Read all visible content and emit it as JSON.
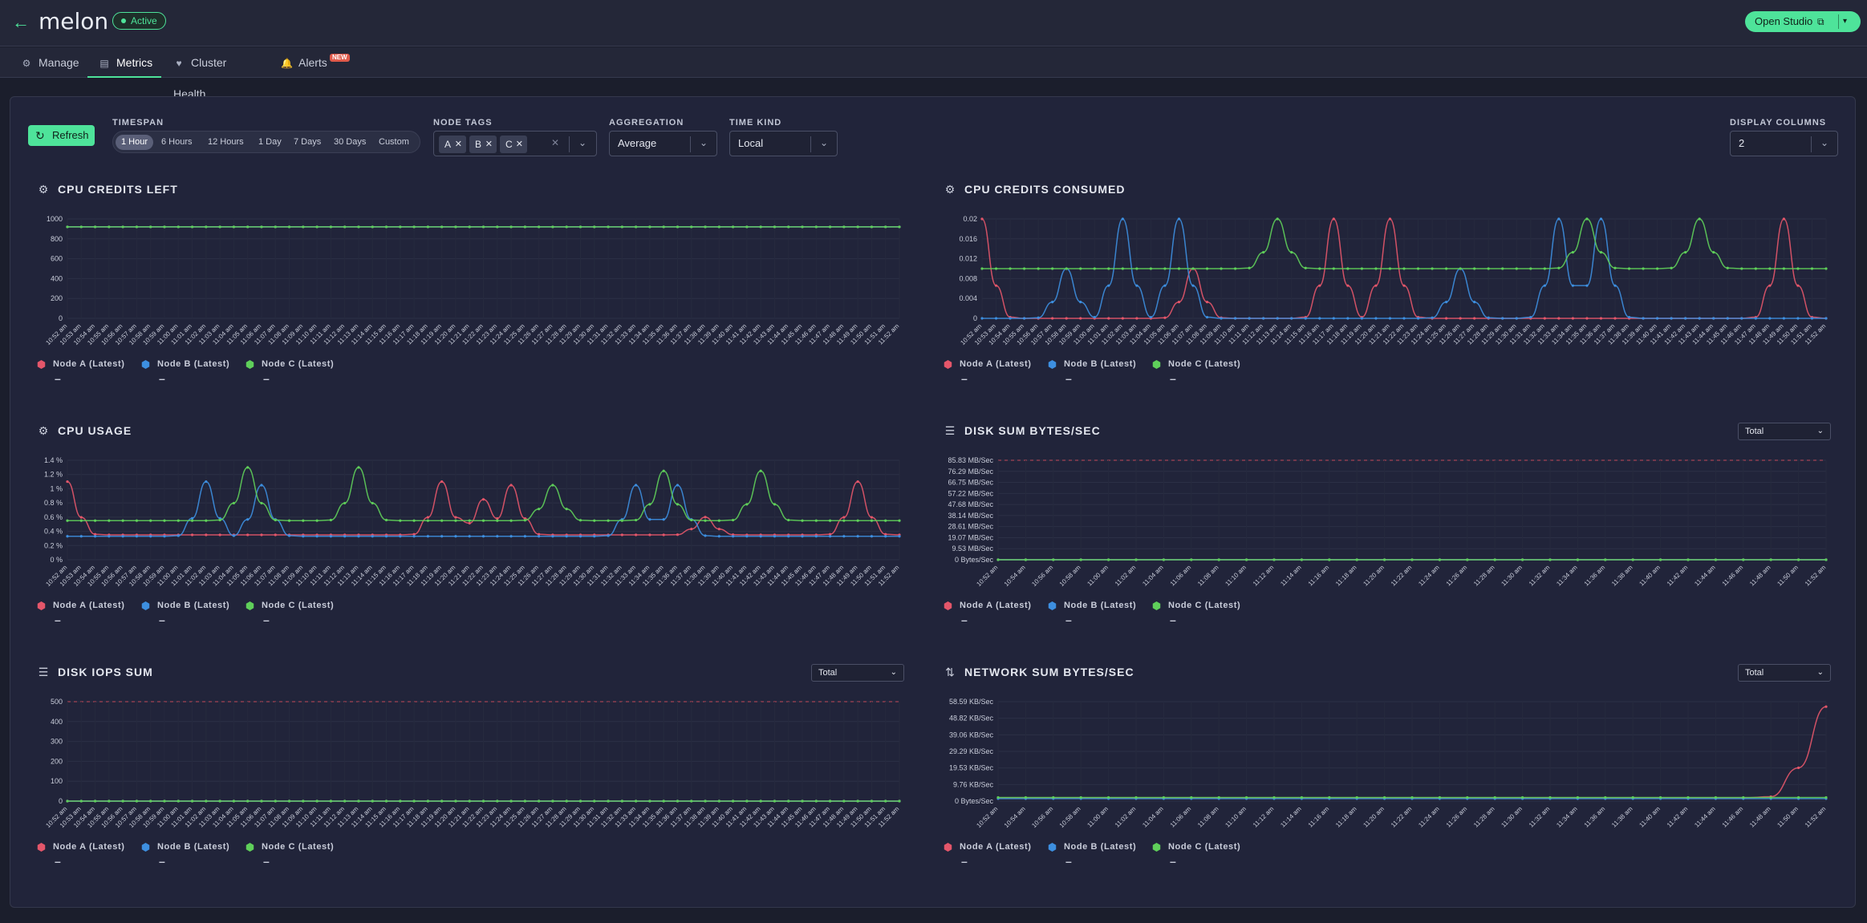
{
  "header": {
    "app_name": "melon",
    "status": "Active",
    "open_studio": "Open Studio"
  },
  "tabs": [
    {
      "label": "Manage",
      "icon": "gear-icon"
    },
    {
      "label": "Metrics",
      "icon": "dashboard-icon",
      "active": true
    },
    {
      "label": "Cluster Health",
      "icon": "heart-icon"
    },
    {
      "label": "Alerts",
      "icon": "bell-icon",
      "badge": "NEW"
    }
  ],
  "filters": {
    "refresh": "Refresh",
    "timespan_label": "TIMESPAN",
    "timespans": [
      "1 Hour",
      "6 Hours",
      "12 Hours",
      "1 Day",
      "7 Days",
      "30 Days",
      "Custom"
    ],
    "timespan_selected": "1 Hour",
    "node_tags_label": "NODE TAGS",
    "node_tags": [
      "A",
      "B",
      "C"
    ],
    "aggregation_label": "AGGREGATION",
    "aggregation": "Average",
    "time_kind_label": "TIME KIND",
    "time_kind": "Local",
    "display_columns_label": "DISPLAY COLUMNS",
    "display_columns": "2"
  },
  "colors": {
    "node_a": "#e4566a",
    "node_b": "#3d8fe0",
    "node_c": "#5fcf5a",
    "accent": "#4ee39a"
  },
  "legend": {
    "a": "Node A (Latest)",
    "b": "Node B (Latest)",
    "c": "Node C (Latest)",
    "value": "–"
  },
  "selector_total": "Total",
  "chart_data": [
    {
      "title": "CPU CREDITS LEFT",
      "type": "line",
      "icon": "gear-icon",
      "yticks": [
        "1000",
        "800",
        "600",
        "400",
        "200",
        "0"
      ],
      "ylim": [
        0,
        1000
      ],
      "x": [
        "10:52 am",
        "10:53 am",
        "10:54 am",
        "10:55 am",
        "10:56 am",
        "10:57 am",
        "10:58 am",
        "10:59 am",
        "11:00 am",
        "11:01 am",
        "11:02 am",
        "11:03 am",
        "11:04 am",
        "11:05 am",
        "11:06 am",
        "11:07 am",
        "11:08 am",
        "11:09 am",
        "11:10 am",
        "11:11 am",
        "11:12 am",
        "11:13 am",
        "11:14 am",
        "11:15 am",
        "11:16 am",
        "11:17 am",
        "11:18 am",
        "11:19 am",
        "11:20 am",
        "11:21 am",
        "11:22 am",
        "11:23 am",
        "11:24 am",
        "11:25 am",
        "11:26 am",
        "11:27 am",
        "11:28 am",
        "11:29 am",
        "11:30 am",
        "11:31 am",
        "11:32 am",
        "11:33 am",
        "11:34 am",
        "11:35 am",
        "11:36 am",
        "11:37 am",
        "11:38 am",
        "11:39 am",
        "11:40 am",
        "11:41 am",
        "11:42 am",
        "11:43 am",
        "11:44 am",
        "11:45 am",
        "11:46 am",
        "11:47 am",
        "11:48 am",
        "11:49 am",
        "11:50 am",
        "11:51 am",
        "11:52 am"
      ],
      "series": [
        {
          "name": "Node A (Latest)",
          "values": "flat:920"
        },
        {
          "name": "Node B (Latest)",
          "values": "flat:920"
        },
        {
          "name": "Node C (Latest)",
          "values": "flat:920"
        }
      ]
    },
    {
      "title": "CPU CREDITS CONSUMED",
      "type": "line",
      "icon": "gear-icon",
      "yticks": [
        "0.02",
        "0.016",
        "0.012",
        "0.008",
        "0.004",
        "0"
      ],
      "ylim": [
        0,
        0.02
      ],
      "x": "same-minutes",
      "series": [
        {
          "name": "Node A (Latest)",
          "peaks": [
            [
              0,
              0.02
            ],
            [
              15,
              0.01
            ],
            [
              25,
              0.02
            ],
            [
              29,
              0.02
            ],
            [
              57,
              0.02
            ]
          ],
          "base": 0
        },
        {
          "name": "Node B (Latest)",
          "peaks": [
            [
              6,
              0.01
            ],
            [
              10,
              0.02
            ],
            [
              14,
              0.02
            ],
            [
              34,
              0.01
            ],
            [
              41,
              0.02
            ],
            [
              44,
              0.02
            ]
          ],
          "base": 0
        },
        {
          "name": "Node C (Latest)",
          "peaks": [
            [
              21,
              0.02
            ],
            [
              43,
              0.02
            ],
            [
              51,
              0.02
            ]
          ],
          "base": 0.01
        }
      ]
    },
    {
      "title": "CPU USAGE",
      "type": "line",
      "icon": "gear-icon",
      "yticks": [
        "1.4 %",
        "1.2 %",
        "1 %",
        "0.8 %",
        "0.6 %",
        "0.4 %",
        "0.2 %",
        "0 %"
      ],
      "ylim": [
        0,
        1.4
      ],
      "x": "same-minutes",
      "series": [
        {
          "name": "Node A (Latest)",
          "peaks": [
            [
              0,
              1.1
            ],
            [
              27,
              1.1
            ],
            [
              30,
              0.85
            ],
            [
              32,
              1.05
            ],
            [
              46,
              0.6
            ],
            [
              57,
              1.1
            ]
          ],
          "base": 0.35
        },
        {
          "name": "Node B (Latest)",
          "peaks": [
            [
              10,
              1.1
            ],
            [
              14,
              1.05
            ],
            [
              41,
              1.05
            ],
            [
              44,
              1.05
            ]
          ],
          "base": 0.33
        },
        {
          "name": "Node C (Latest)",
          "peaks": [
            [
              13,
              1.3
            ],
            [
              21,
              1.3
            ],
            [
              35,
              1.05
            ],
            [
              43,
              1.25
            ],
            [
              50,
              1.25
            ]
          ],
          "base": 0.55
        }
      ]
    },
    {
      "title": "DISK SUM BYTES/SEC",
      "type": "line",
      "icon": "disk-icon",
      "selector": "Total",
      "yticks": [
        "85.83 MB/Sec",
        "76.29 MB/Sec",
        "66.75 MB/Sec",
        "57.22 MB/Sec",
        "47.68 MB/Sec",
        "38.14 MB/Sec",
        "28.61 MB/Sec",
        "19.07 MB/Sec",
        "9.53 MB/Sec",
        "0 Bytes/Sec"
      ],
      "x": [
        "10:52 am",
        "10:54 am",
        "10:56 am",
        "10:58 am",
        "11:00 am",
        "11:02 am",
        "11:04 am",
        "11:06 am",
        "11:08 am",
        "11:10 am",
        "11:12 am",
        "11:14 am",
        "11:16 am",
        "11:18 am",
        "11:20 am",
        "11:22 am",
        "11:24 am",
        "11:26 am",
        "11:28 am",
        "11:30 am",
        "11:32 am",
        "11:34 am",
        "11:36 am",
        "11:38 am",
        "11:40 am",
        "11:42 am",
        "11:44 am",
        "11:46 am",
        "11:48 am",
        "11:50 am",
        "11:52 am"
      ],
      "series": [
        {
          "name": "Node A (Latest)",
          "values": "flat:0"
        },
        {
          "name": "Node B (Latest)",
          "values": "flat:0"
        },
        {
          "name": "Node C (Latest)",
          "values": "flat:0"
        }
      ]
    },
    {
      "title": "DISK IOPS SUM",
      "type": "line",
      "icon": "disk-icon",
      "selector": "Total",
      "yticks": [
        "500",
        "400",
        "300",
        "200",
        "100",
        "0"
      ],
      "ylim": [
        0,
        500
      ],
      "x": "same-minutes",
      "series": [
        {
          "name": "Node A (Latest)",
          "values": "flat:0"
        },
        {
          "name": "Node B (Latest)",
          "values": "flat:0"
        },
        {
          "name": "Node C (Latest)",
          "values": "flat:0"
        }
      ]
    },
    {
      "title": "NETWORK SUM BYTES/SEC",
      "type": "line",
      "icon": "network-icon",
      "selector": "Total",
      "yticks": [
        "58.59 KB/Sec",
        "48.82 KB/Sec",
        "39.06 KB/Sec",
        "29.29 KB/Sec",
        "19.53 KB/Sec",
        "9.76 KB/Sec",
        "0 Bytes/Sec"
      ],
      "ylim": [
        0,
        60
      ],
      "x": "same-2min",
      "series": [
        {
          "name": "Node A (Latest)",
          "peaks": [
            [
              30,
              57
            ]
          ],
          "base": 2
        },
        {
          "name": "Node B (Latest)",
          "peaks": [
            [
              59,
              52
            ]
          ],
          "base": 1.5
        },
        {
          "name": "Node C (Latest)",
          "peaks": [
            [
              35,
              49
            ]
          ],
          "base": 2.2
        }
      ]
    }
  ]
}
